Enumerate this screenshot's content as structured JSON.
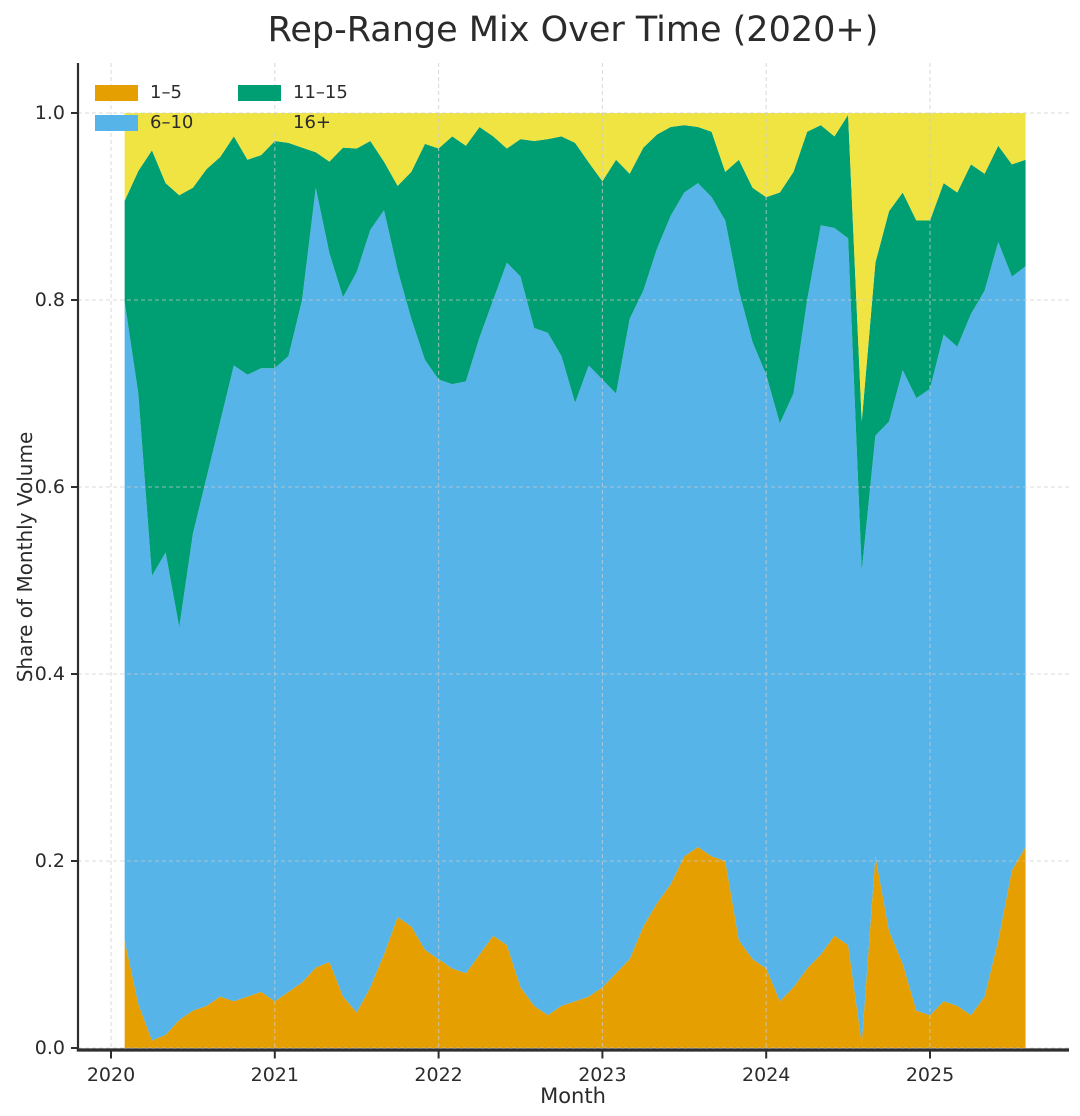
{
  "figure": {
    "title": "Rep-Range Mix Over Time (2020+)",
    "xlabel": "Month",
    "ylabel": "Share of Monthly Volume"
  },
  "style": {
    "background": "#ffffff",
    "text_color": "#2b2b2b",
    "spine_color": "#2e2e2e",
    "grid_color": "#cccccc"
  },
  "chart_data": {
    "type": "area",
    "stacked": true,
    "title": "Rep-Range Mix Over Time (2020+)",
    "xlabel": "Month",
    "ylabel": "Share of Monthly Volume",
    "ylim": [
      0,
      1.05
    ],
    "grid": true,
    "legend_position": "upper-left",
    "legend_columns": 2,
    "xticks": [
      "2020",
      "2021",
      "2022",
      "2023",
      "2024",
      "2025"
    ],
    "yticks": [
      "0.0",
      "0.2",
      "0.4",
      "0.6",
      "0.8",
      "1.0"
    ],
    "x_months": [
      "2020-02",
      "2020-03",
      "2020-04",
      "2020-05",
      "2020-06",
      "2020-07",
      "2020-08",
      "2020-09",
      "2020-10",
      "2020-11",
      "2020-12",
      "2021-01",
      "2021-02",
      "2021-03",
      "2021-04",
      "2021-05",
      "2021-06",
      "2021-07",
      "2021-08",
      "2021-09",
      "2021-10",
      "2021-11",
      "2021-12",
      "2022-01",
      "2022-02",
      "2022-03",
      "2022-04",
      "2022-05",
      "2022-06",
      "2022-07",
      "2022-08",
      "2022-09",
      "2022-10",
      "2022-11",
      "2022-12",
      "2023-01",
      "2023-02",
      "2023-03",
      "2023-04",
      "2023-05",
      "2023-06",
      "2023-07",
      "2023-08",
      "2023-09",
      "2023-10",
      "2023-11",
      "2023-12",
      "2024-01",
      "2024-02",
      "2024-03",
      "2024-04",
      "2024-05",
      "2024-06",
      "2024-07",
      "2024-08",
      "2024-09",
      "2024-10",
      "2024-11",
      "2024-12",
      "2025-01",
      "2025-02",
      "2025-03",
      "2025-04",
      "2025-05",
      "2025-06",
      "2025-07",
      "2025-08"
    ],
    "series": [
      {
        "name": "1–5",
        "color": "#E69F00",
        "values": [
          0.115,
          0.047,
          0.008,
          0.014,
          0.03,
          0.04,
          0.045,
          0.055,
          0.05,
          0.055,
          0.06,
          0.05,
          0.06,
          0.07,
          0.086,
          0.092,
          0.055,
          0.038,
          0.065,
          0.1,
          0.14,
          0.13,
          0.105,
          0.095,
          0.085,
          0.08,
          0.1,
          0.12,
          0.11,
          0.065,
          0.045,
          0.035,
          0.045,
          0.05,
          0.055,
          0.065,
          0.08,
          0.095,
          0.13,
          0.155,
          0.175,
          0.205,
          0.215,
          0.205,
          0.2,
          0.115,
          0.095,
          0.085,
          0.05,
          0.065,
          0.085,
          0.1,
          0.12,
          0.11,
          0.005,
          0.205,
          0.125,
          0.09,
          0.04,
          0.035,
          0.05,
          0.045,
          0.035,
          0.055,
          0.115,
          0.19,
          0.215
        ]
      },
      {
        "name": "6–10",
        "color": "#56B4E9",
        "values": [
          0.683,
          0.653,
          0.497,
          0.516,
          0.42,
          0.51,
          0.565,
          0.615,
          0.68,
          0.665,
          0.667,
          0.677,
          0.68,
          0.73,
          0.834,
          0.758,
          0.748,
          0.792,
          0.81,
          0.796,
          0.692,
          0.65,
          0.631,
          0.62,
          0.625,
          0.633,
          0.66,
          0.68,
          0.73,
          0.76,
          0.725,
          0.73,
          0.695,
          0.64,
          0.675,
          0.65,
          0.62,
          0.685,
          0.68,
          0.7,
          0.715,
          0.71,
          0.71,
          0.705,
          0.685,
          0.695,
          0.66,
          0.635,
          0.618,
          0.635,
          0.715,
          0.78,
          0.757,
          0.756,
          0.505,
          0.45,
          0.545,
          0.635,
          0.655,
          0.67,
          0.713,
          0.705,
          0.75,
          0.755,
          0.747,
          0.635,
          0.621
        ]
      },
      {
        "name": "11–15",
        "color": "#009E73",
        "values": [
          0.108,
          0.238,
          0.455,
          0.395,
          0.462,
          0.37,
          0.33,
          0.283,
          0.245,
          0.23,
          0.228,
          0.243,
          0.228,
          0.163,
          0.038,
          0.098,
          0.16,
          0.132,
          0.095,
          0.052,
          0.09,
          0.157,
          0.231,
          0.247,
          0.265,
          0.252,
          0.225,
          0.175,
          0.122,
          0.147,
          0.2,
          0.207,
          0.235,
          0.278,
          0.217,
          0.212,
          0.25,
          0.155,
          0.153,
          0.122,
          0.095,
          0.072,
          0.06,
          0.07,
          0.052,
          0.14,
          0.165,
          0.19,
          0.247,
          0.237,
          0.18,
          0.107,
          0.098,
          0.132,
          0.16,
          0.185,
          0.225,
          0.19,
          0.19,
          0.18,
          0.162,
          0.165,
          0.16,
          0.125,
          0.103,
          0.12,
          0.114
        ]
      },
      {
        "name": "16+",
        "color": "#F0E442",
        "values": [
          0.094,
          0.062,
          0.04,
          0.075,
          0.088,
          0.08,
          0.06,
          0.047,
          0.025,
          0.05,
          0.045,
          0.03,
          0.032,
          0.037,
          0.042,
          0.052,
          0.037,
          0.038,
          0.03,
          0.052,
          0.078,
          0.063,
          0.033,
          0.038,
          0.025,
          0.035,
          0.015,
          0.025,
          0.038,
          0.028,
          0.03,
          0.028,
          0.025,
          0.032,
          0.053,
          0.073,
          0.05,
          0.065,
          0.037,
          0.023,
          0.015,
          0.013,
          0.015,
          0.02,
          0.063,
          0.05,
          0.08,
          0.09,
          0.085,
          0.063,
          0.02,
          0.013,
          0.025,
          0.002,
          0.33,
          0.16,
          0.105,
          0.085,
          0.115,
          0.115,
          0.075,
          0.085,
          0.055,
          0.065,
          0.035,
          0.055,
          0.05
        ]
      }
    ]
  }
}
